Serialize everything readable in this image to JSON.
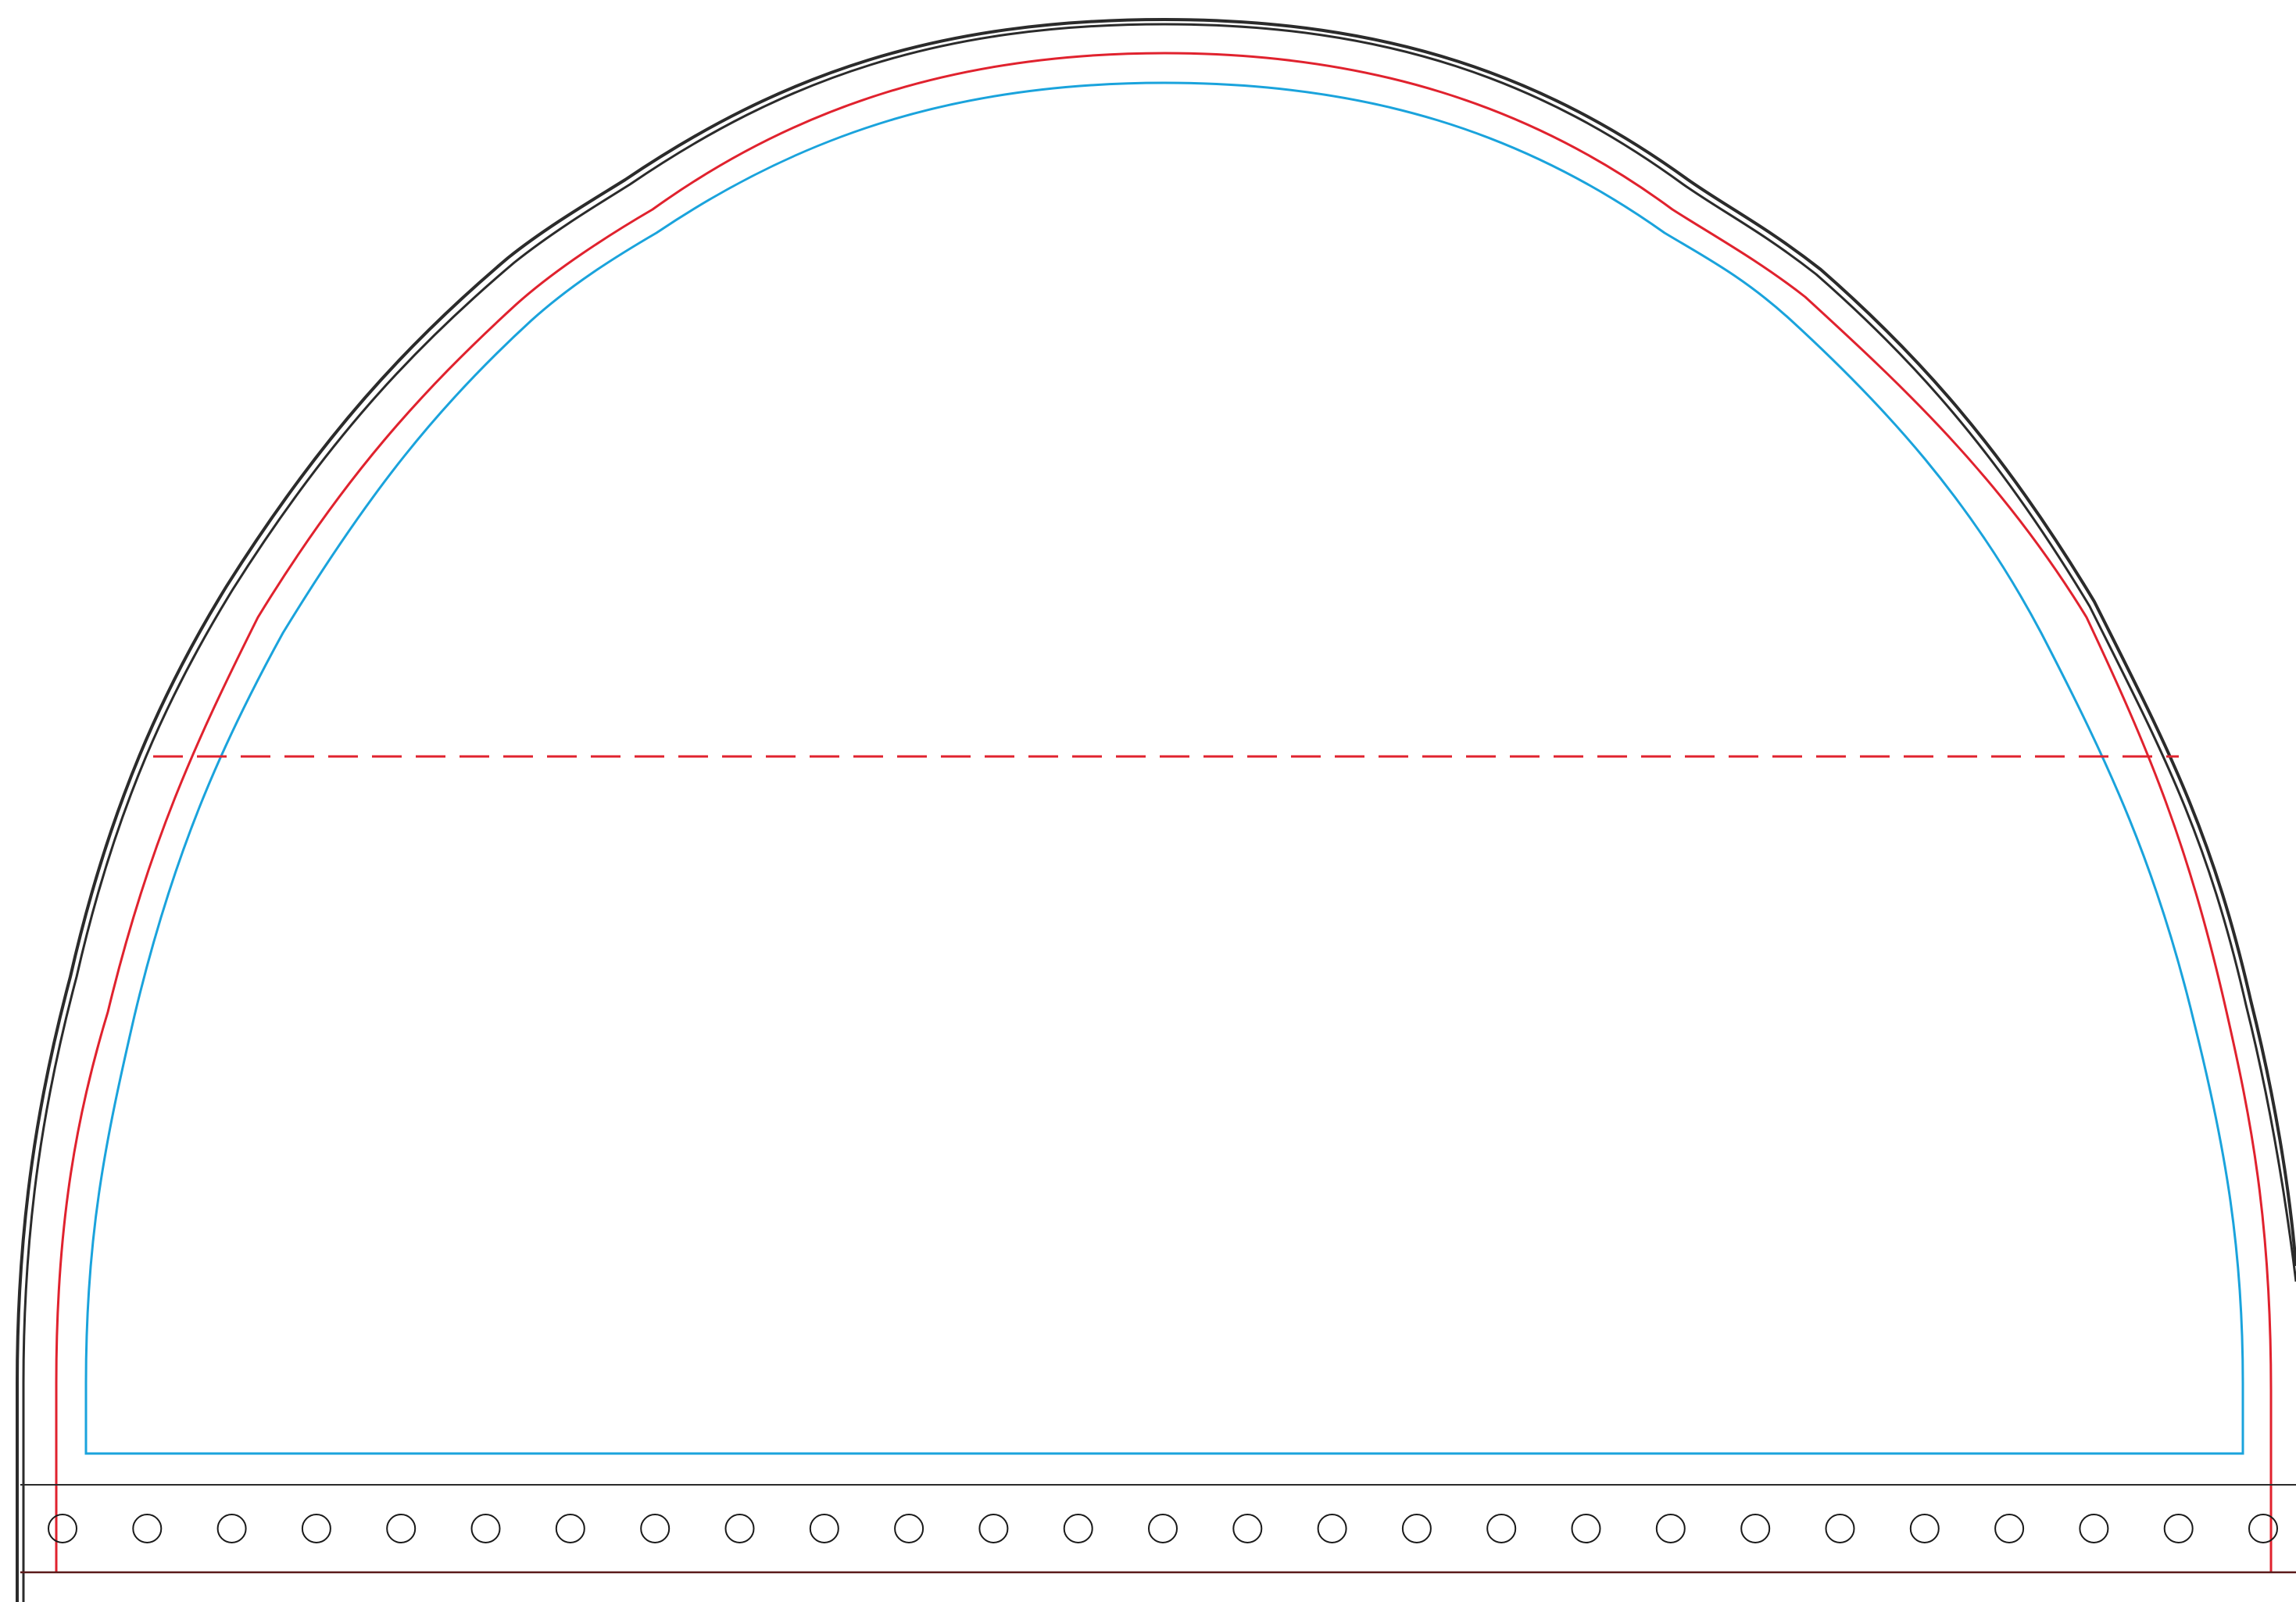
{
  "diagram": {
    "type": "sewing-pattern-template",
    "lines": {
      "cut_line": {
        "color": "#2b2b2b",
        "style": "solid-double"
      },
      "seam_line": {
        "color": "#e0222e",
        "style": "solid"
      },
      "inner_line": {
        "color": "#1aa3dc",
        "style": "solid"
      },
      "fold_line": {
        "color": "#e0222e",
        "style": "dashed"
      },
      "strip_line": {
        "color": "#2b2b2b",
        "style": "solid"
      },
      "strip_bottom_line": {
        "color": "#5a1a1a",
        "style": "solid"
      }
    },
    "holes": {
      "count": 27,
      "color": "#1a1a1a"
    }
  }
}
